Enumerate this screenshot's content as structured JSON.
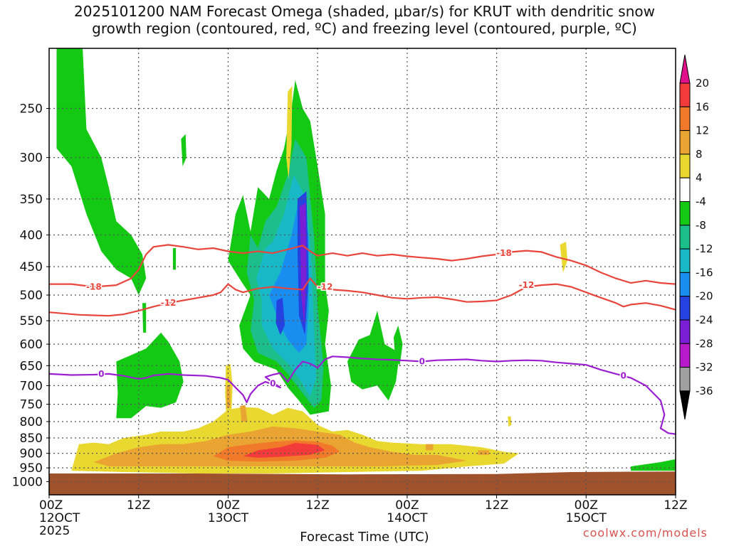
{
  "header": {
    "title_line1": "2025101200 NAM Forecast Omega (shaded, μbar/s) for KRUT with dendritic snow",
    "title_line2": "growth region (contoured, red, ºC) and freezing level (contoured, purple, ºC)"
  },
  "credit": "coolwx.com/models",
  "colors": {
    "ground": "#a0522d",
    "dgz_contour": "#e8453c",
    "freezing_contour": "#9b1fd1",
    "grid": "#555555"
  },
  "chart_data": {
    "type": "heatmap",
    "xlabel": "Forecast Time (UTC)",
    "ylabel": "",
    "x_range_hours": [
      0,
      84
    ],
    "y_range_hpa": [
      1050,
      200
    ],
    "y_scale": "log-pressure",
    "grid": true,
    "x_ticks": [
      {
        "hour": 0,
        "lines": [
          "00Z",
          "12OCT",
          "2025"
        ]
      },
      {
        "hour": 12,
        "lines": [
          "12Z"
        ]
      },
      {
        "hour": 24,
        "lines": [
          "00Z",
          "13OCT"
        ]
      },
      {
        "hour": 36,
        "lines": [
          "12Z"
        ]
      },
      {
        "hour": 48,
        "lines": [
          "00Z",
          "14OCT"
        ]
      },
      {
        "hour": 60,
        "lines": [
          "12Z"
        ]
      },
      {
        "hour": 72,
        "lines": [
          "00Z",
          "15OCT"
        ]
      },
      {
        "hour": 84,
        "lines": [
          "12Z"
        ]
      }
    ],
    "y_ticks": [
      250,
      300,
      350,
      400,
      450,
      500,
      550,
      600,
      650,
      700,
      750,
      800,
      850,
      900,
      950,
      1000
    ],
    "colorbar": {
      "ticks": [
        "20",
        "16",
        "12",
        "8",
        "4",
        "-4",
        "-8",
        "-12",
        "-16",
        "-20",
        "-24",
        "-28",
        "-32",
        "-36"
      ],
      "bins": [
        {
          "from": 20,
          "to": 24,
          "color": "#e0108a"
        },
        {
          "from": 16,
          "to": 20,
          "color": "#f33b3b"
        },
        {
          "from": 12,
          "to": 16,
          "color": "#f07a2a"
        },
        {
          "from": 8,
          "to": 12,
          "color": "#eaa431"
        },
        {
          "from": 4,
          "to": 8,
          "color": "#e8d830"
        },
        {
          "from": -4,
          "to": 4,
          "color": "#ffffff"
        },
        {
          "from": -8,
          "to": -4,
          "color": "#13c913"
        },
        {
          "from": -12,
          "to": -8,
          "color": "#1cbf8a"
        },
        {
          "from": -16,
          "to": -12,
          "color": "#19b8c7"
        },
        {
          "from": -20,
          "to": -16,
          "color": "#1a8ef0"
        },
        {
          "from": -24,
          "to": -20,
          "color": "#2541e0"
        },
        {
          "from": -28,
          "to": -24,
          "color": "#7a1fd6"
        },
        {
          "from": -32,
          "to": -28,
          "color": "#b81ac9"
        },
        {
          "from": -36,
          "to": -32,
          "color": "#a0a0a0"
        },
        {
          "from": -40,
          "to": -36,
          "color": "#000000"
        }
      ]
    },
    "contours": [
      {
        "label": "-18",
        "color": "#e8453c",
        "points": [
          [
            0,
            480
          ],
          [
            3,
            480
          ],
          [
            6,
            485
          ],
          [
            9,
            482
          ],
          [
            11,
            470
          ],
          [
            12,
            455
          ],
          [
            13,
            430
          ],
          [
            14,
            418
          ],
          [
            16,
            415
          ],
          [
            18,
            418
          ],
          [
            20,
            422
          ],
          [
            22,
            420
          ],
          [
            24,
            425
          ],
          [
            26,
            428
          ],
          [
            28,
            425
          ],
          [
            30,
            428
          ],
          [
            32,
            422
          ],
          [
            34,
            416
          ],
          [
            35,
            425
          ],
          [
            36,
            432
          ],
          [
            38,
            428
          ],
          [
            40,
            432
          ],
          [
            42,
            428
          ],
          [
            44,
            432
          ],
          [
            46,
            430
          ],
          [
            48,
            433
          ],
          [
            50,
            435
          ],
          [
            52,
            437
          ],
          [
            54,
            440
          ],
          [
            56,
            437
          ],
          [
            58,
            433
          ],
          [
            60,
            430
          ],
          [
            62,
            426
          ],
          [
            64,
            424
          ],
          [
            66,
            426
          ],
          [
            68,
            434
          ],
          [
            70,
            440
          ],
          [
            72,
            448
          ],
          [
            74,
            460
          ],
          [
            76,
            470
          ],
          [
            78,
            478
          ],
          [
            80,
            474
          ],
          [
            82,
            478
          ],
          [
            84,
            480
          ]
        ],
        "label_positions": [
          [
            6,
            485
          ],
          [
            61,
            428
          ]
        ]
      },
      {
        "label": "-12",
        "color": "#e8453c",
        "points": [
          [
            0,
            533
          ],
          [
            4,
            538
          ],
          [
            8,
            540
          ],
          [
            10,
            537
          ],
          [
            12,
            530
          ],
          [
            14,
            522
          ],
          [
            16,
            515
          ],
          [
            18,
            510
          ],
          [
            20,
            505
          ],
          [
            22,
            500
          ],
          [
            23,
            495
          ],
          [
            24,
            480
          ],
          [
            25,
            490
          ],
          [
            26,
            495
          ],
          [
            28,
            488
          ],
          [
            30,
            485
          ],
          [
            32,
            488
          ],
          [
            34,
            490
          ],
          [
            35,
            470
          ],
          [
            36,
            485
          ],
          [
            38,
            490
          ],
          [
            40,
            492
          ],
          [
            42,
            495
          ],
          [
            44,
            500
          ],
          [
            46,
            505
          ],
          [
            48,
            507
          ],
          [
            50,
            505
          ],
          [
            52,
            504
          ],
          [
            54,
            508
          ],
          [
            56,
            513
          ],
          [
            58,
            512
          ],
          [
            60,
            510
          ],
          [
            62,
            500
          ],
          [
            64,
            485
          ],
          [
            66,
            482
          ],
          [
            68,
            480
          ],
          [
            70,
            485
          ],
          [
            72,
            495
          ],
          [
            74,
            505
          ],
          [
            76,
            515
          ],
          [
            77,
            522
          ],
          [
            78,
            518
          ],
          [
            80,
            515
          ],
          [
            82,
            520
          ],
          [
            84,
            528
          ]
        ],
        "label_positions": [
          [
            16,
            515
          ],
          [
            37,
            485
          ],
          [
            64,
            482
          ]
        ]
      },
      {
        "label": "0",
        "color": "#9b1fd1",
        "points": [
          [
            0,
            670
          ],
          [
            3,
            673
          ],
          [
            6,
            672
          ],
          [
            8,
            670
          ],
          [
            10,
            675
          ],
          [
            12,
            683
          ],
          [
            13,
            680
          ],
          [
            14,
            674
          ],
          [
            16,
            670
          ],
          [
            18,
            673
          ],
          [
            21,
            675
          ],
          [
            23,
            680
          ],
          [
            24,
            685
          ],
          [
            25,
            705
          ],
          [
            26,
            725
          ],
          [
            26.5,
            745
          ],
          [
            27,
            722
          ],
          [
            28,
            700
          ],
          [
            29,
            690
          ],
          [
            30,
            697
          ],
          [
            31,
            705
          ],
          [
            29.5,
            685
          ],
          [
            29,
            678
          ],
          [
            30,
            672
          ],
          [
            31,
            668
          ],
          [
            32,
            690
          ],
          [
            33,
            660
          ],
          [
            34,
            640
          ],
          [
            35,
            645
          ],
          [
            36,
            655
          ],
          [
            37,
            635
          ],
          [
            38,
            628
          ],
          [
            40,
            630
          ],
          [
            42,
            633
          ],
          [
            44,
            635
          ],
          [
            46,
            636
          ],
          [
            48,
            638
          ],
          [
            50,
            640
          ],
          [
            52,
            637
          ],
          [
            54,
            636
          ],
          [
            56,
            635
          ],
          [
            58,
            638
          ],
          [
            60,
            640
          ],
          [
            62,
            638
          ],
          [
            64,
            637
          ],
          [
            66,
            638
          ],
          [
            68,
            642
          ],
          [
            70,
            645
          ],
          [
            72,
            648
          ],
          [
            74,
            660
          ],
          [
            76,
            670
          ],
          [
            78,
            680
          ],
          [
            80,
            700
          ],
          [
            82,
            740
          ],
          [
            82.5,
            780
          ],
          [
            82,
            820
          ],
          [
            83,
            835
          ],
          [
            84,
            838
          ]
        ],
        "label_positions": [
          [
            7,
            670
          ],
          [
            30,
            695
          ],
          [
            50,
            640
          ],
          [
            77,
            675
          ]
        ]
      }
    ],
    "shaded_regions": [
      {
        "value_bin": [
          -8,
          -4
        ],
        "approx_extent_hours": [
          0,
          13
        ],
        "approx_extent_hpa": [
          200,
          450
        ]
      },
      {
        "value_bin": [
          -8,
          -4
        ],
        "approx_extent_hours": [
          9,
          18
        ],
        "approx_extent_hpa": [
          550,
          780
        ]
      },
      {
        "value_bin": [
          -8,
          -4
        ],
        "approx_extent_hours": [
          24,
          38
        ],
        "approx_extent_hpa": [
          250,
          780
        ]
      },
      {
        "value_bin": [
          -28,
          -24
        ],
        "approx_extent_hours": [
          33.5,
          35
        ],
        "approx_extent_hpa": [
          330,
          600
        ]
      },
      {
        "value_bin": [
          -8,
          -4
        ],
        "approx_extent_hours": [
          40,
          47
        ],
        "approx_extent_hpa": [
          550,
          740
        ]
      },
      {
        "value_bin": [
          4,
          8
        ],
        "approx_extent_hours": [
          3,
          63
        ],
        "approx_extent_hpa": [
          750,
          960
        ]
      },
      {
        "value_bin": [
          16,
          20
        ],
        "approx_extent_hours": [
          26,
          36
        ],
        "approx_extent_hpa": [
          860,
          905
        ]
      }
    ],
    "ground_level_hpa": 970
  }
}
